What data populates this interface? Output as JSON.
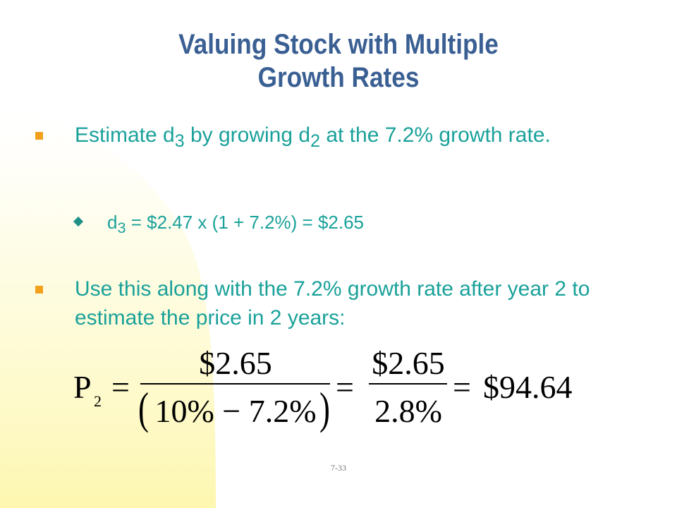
{
  "slide": {
    "title_line1": "Valuing Stock with Multiple",
    "title_line2": "Growth Rates",
    "bullet1": {
      "t1": "Estimate d",
      "sub1": "3",
      "t2": " by growing d",
      "sub2": "2",
      "t3": " at the 7.2% growth rate."
    },
    "sub_bullet": {
      "t1": "d",
      "sub1": "3",
      "t2": " = $2.47 x (1 + 7.2%) = $2.65"
    },
    "bullet2": "Use this along with the 7.2% growth rate after year 2 to estimate the price in 2 years:",
    "formula": {
      "lhs": "P",
      "lhs_sub": "2",
      "eq": "=",
      "num1": "$2.65",
      "den1": "10% − 7.2%",
      "num2": "$2.65",
      "den2": "2.8%",
      "result": "$94.64"
    },
    "page_number": "7-33",
    "colors": {
      "title": "#3a5f93",
      "body_text": "#1aa19a",
      "bullet_marker": "#f1a11c",
      "background_glow": "#fdf7b0"
    }
  }
}
